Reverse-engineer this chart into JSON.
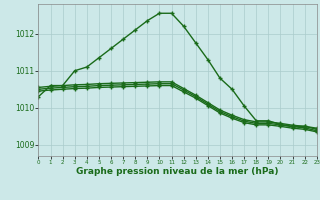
{
  "bg_color": "#cce8e8",
  "grid_color": "#aacccc",
  "line_color": "#1a6b1a",
  "xlabel": "Graphe pression niveau de la mer (hPa)",
  "xlim": [
    0,
    23
  ],
  "ylim": [
    1008.7,
    1012.8
  ],
  "yticks": [
    1009,
    1010,
    1011,
    1012
  ],
  "xticks": [
    0,
    1,
    2,
    3,
    4,
    5,
    6,
    7,
    8,
    9,
    10,
    11,
    12,
    13,
    14,
    15,
    16,
    17,
    18,
    19,
    20,
    21,
    22,
    23
  ],
  "series1": {
    "x": [
      0,
      1,
      2,
      3,
      4,
      5,
      6,
      7,
      8,
      9,
      10,
      11,
      12,
      13,
      14,
      15,
      16,
      17,
      18,
      19,
      20,
      21,
      22,
      23
    ],
    "y": [
      1010.3,
      1010.6,
      1010.6,
      1011.0,
      1011.1,
      1011.35,
      1011.6,
      1011.85,
      1012.1,
      1012.35,
      1012.55,
      1012.55,
      1012.2,
      1011.75,
      1011.3,
      1010.8,
      1010.5,
      1010.05,
      1009.65,
      1009.65,
      1009.55,
      1009.5,
      1009.5,
      1009.45
    ]
  },
  "series2": {
    "x": [
      0,
      1,
      2,
      3,
      4,
      5,
      6,
      7,
      8,
      9,
      10,
      11,
      12,
      13,
      14,
      15,
      16,
      17,
      18,
      19,
      20,
      21,
      22,
      23
    ],
    "y": [
      1010.55,
      1010.58,
      1010.6,
      1010.62,
      1010.63,
      1010.65,
      1010.66,
      1010.67,
      1010.68,
      1010.69,
      1010.7,
      1010.7,
      1010.52,
      1010.34,
      1010.14,
      1009.94,
      1009.8,
      1009.68,
      1009.62,
      1009.62,
      1009.58,
      1009.53,
      1009.5,
      1009.42
    ]
  },
  "series3": {
    "x": [
      0,
      1,
      2,
      3,
      4,
      5,
      6,
      7,
      8,
      9,
      10,
      11,
      12,
      13,
      14,
      15,
      16,
      17,
      18,
      19,
      20,
      21,
      22,
      23
    ],
    "y": [
      1010.5,
      1010.53,
      1010.55,
      1010.57,
      1010.58,
      1010.6,
      1010.61,
      1010.62,
      1010.63,
      1010.64,
      1010.65,
      1010.65,
      1010.48,
      1010.3,
      1010.1,
      1009.9,
      1009.76,
      1009.64,
      1009.58,
      1009.58,
      1009.54,
      1009.49,
      1009.46,
      1009.38
    ]
  },
  "series4": {
    "x": [
      0,
      1,
      2,
      3,
      4,
      5,
      6,
      7,
      8,
      9,
      10,
      11,
      12,
      13,
      14,
      15,
      16,
      17,
      18,
      19,
      20,
      21,
      22,
      23
    ],
    "y": [
      1010.45,
      1010.48,
      1010.5,
      1010.52,
      1010.53,
      1010.55,
      1010.56,
      1010.57,
      1010.58,
      1010.59,
      1010.6,
      1010.6,
      1010.43,
      1010.26,
      1010.06,
      1009.86,
      1009.72,
      1009.6,
      1009.54,
      1009.54,
      1009.5,
      1009.45,
      1009.42,
      1009.35
    ]
  }
}
